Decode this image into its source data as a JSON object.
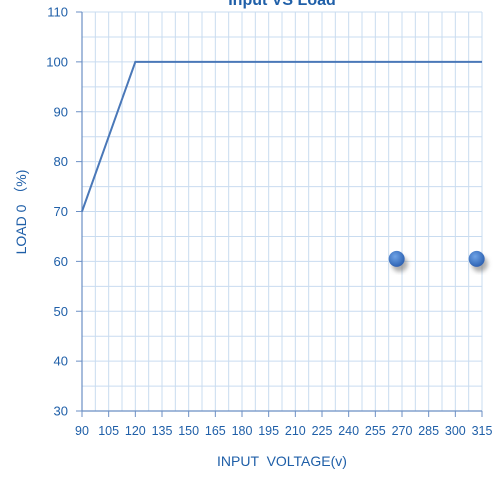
{
  "chart_data": {
    "type": "line",
    "title": "Input VS Load",
    "xlabel": "INPUT  VOLTAGE(v)",
    "ylabel": "LOAD 0 （%)",
    "x_ticks": [
      90,
      105,
      120,
      135,
      150,
      165,
      180,
      195,
      210,
      225,
      240,
      255,
      270,
      285,
      300,
      315
    ],
    "y_ticks": [
      30,
      40,
      50,
      60,
      70,
      80,
      90,
      100,
      110
    ],
    "xlim": [
      90,
      315
    ],
    "ylim": [
      30,
      110
    ],
    "grid": true,
    "series": [
      {
        "type": "line",
        "color": "#4a78b8",
        "points": [
          [
            90,
            70
          ],
          [
            120,
            100
          ],
          [
            315,
            100
          ]
        ]
      },
      {
        "type": "scatter",
        "color": "#3a73c6",
        "points": [
          [
            267,
            60.5
          ],
          [
            312,
            60.5
          ]
        ]
      }
    ],
    "colors": {
      "axis_text": "#1f5fa8",
      "title": "#1f5fa8",
      "grid": "#c9dcf0",
      "axis": "#6b8fc4"
    }
  }
}
